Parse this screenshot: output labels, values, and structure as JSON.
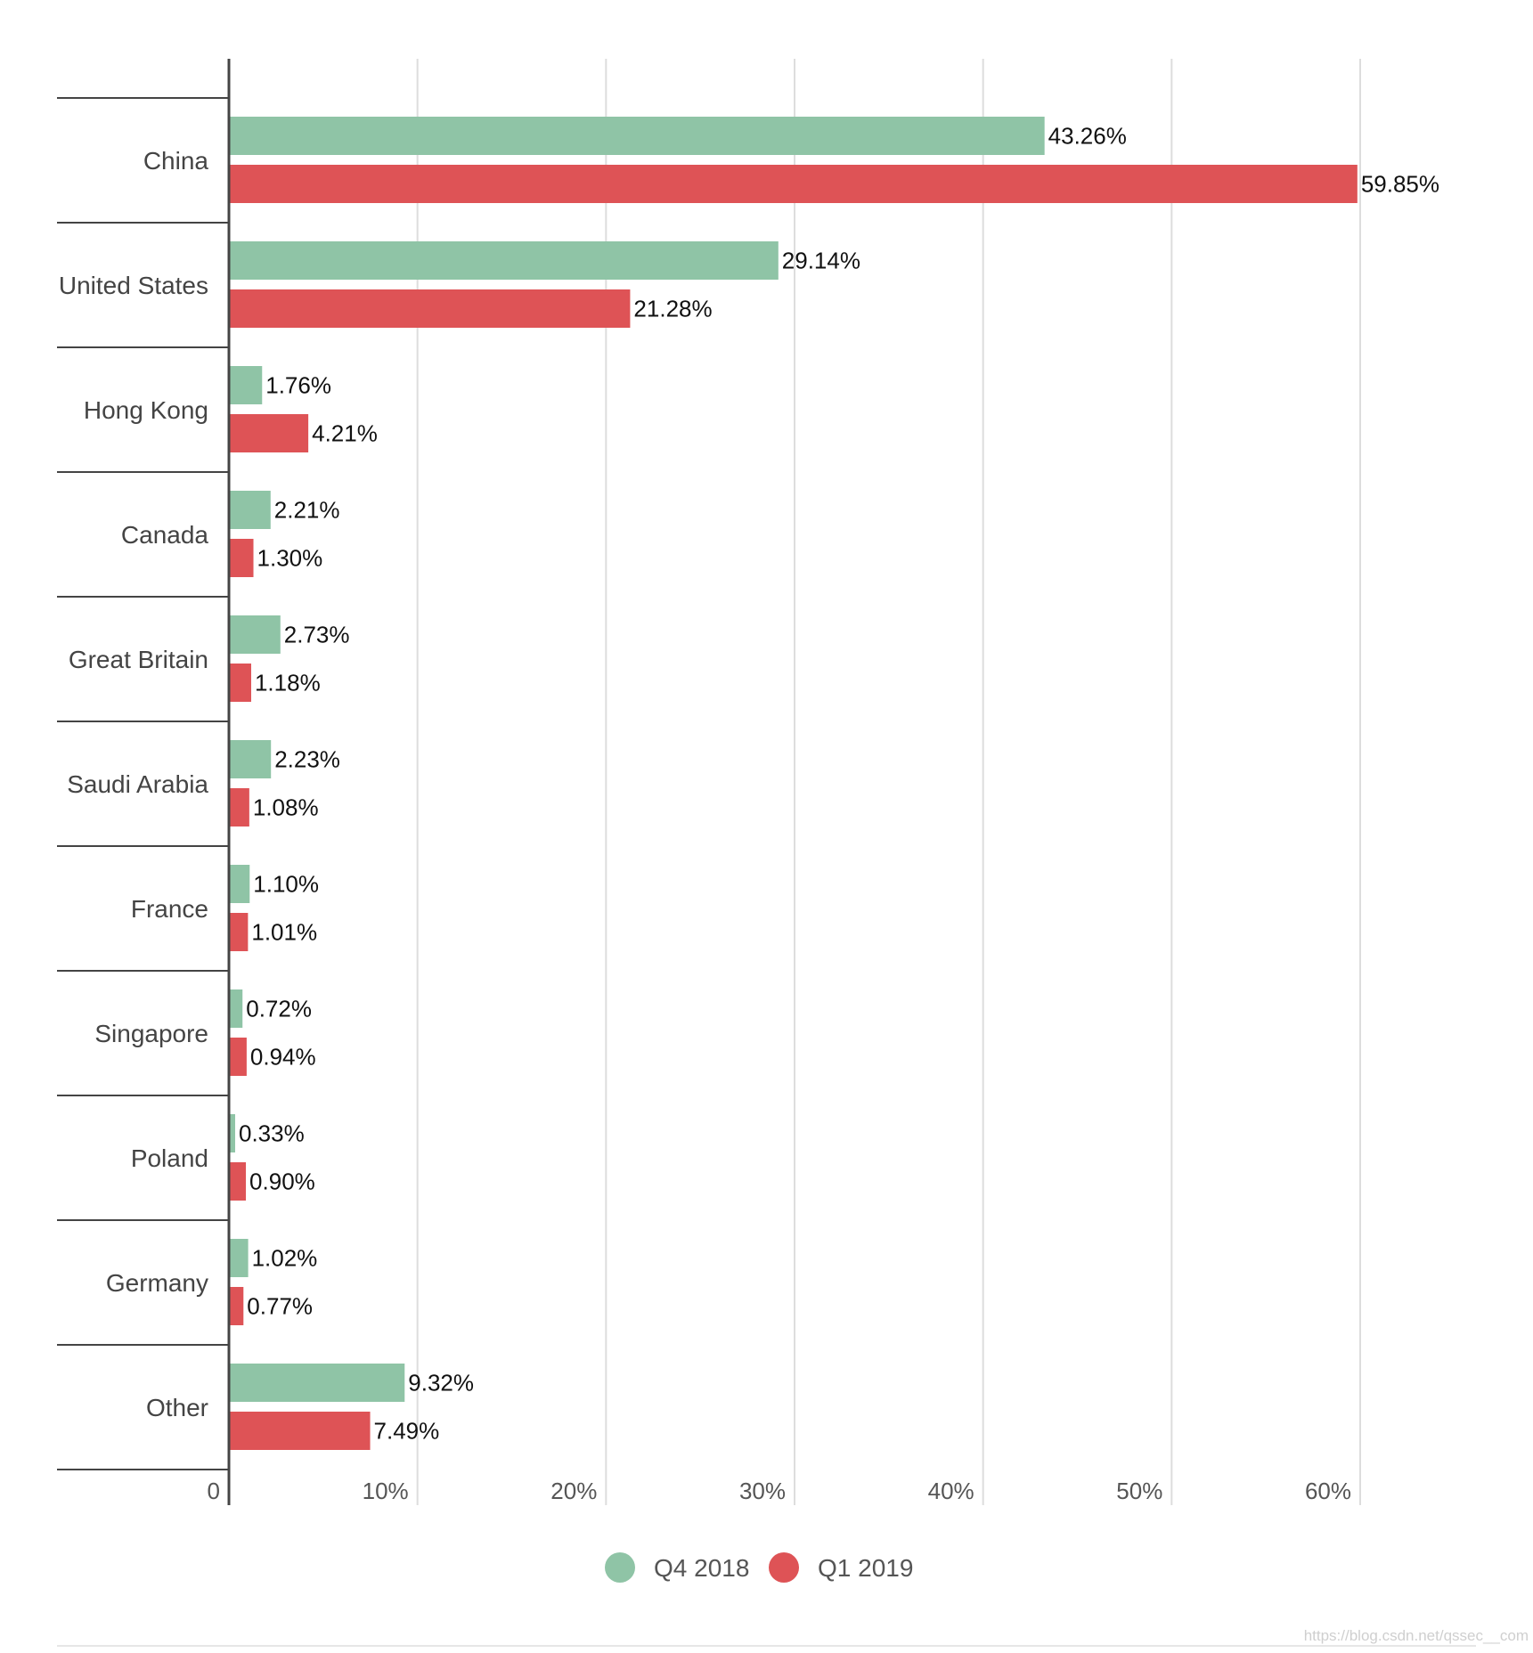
{
  "chart_data": {
    "type": "bar",
    "orientation": "horizontal",
    "categories": [
      "China",
      "United States",
      "Hong Kong",
      "Canada",
      "Great Britain",
      "Saudi Arabia",
      "France",
      "Singapore",
      "Poland",
      "Germany",
      "Other"
    ],
    "series": [
      {
        "name": "Q4 2018",
        "color": "#8fc4a6",
        "values": [
          43.26,
          29.14,
          1.76,
          2.21,
          2.73,
          2.23,
          1.1,
          0.72,
          0.33,
          1.02,
          9.32
        ],
        "labels": [
          "43.26%",
          "29.14%",
          "1.76%",
          "2.21%",
          "2.73%",
          "2.23%",
          "1.10%",
          "0.72%",
          "0.33%",
          "1.02%",
          "9.32%"
        ]
      },
      {
        "name": "Q1 2019",
        "color": "#de5356",
        "values": [
          59.85,
          21.28,
          4.21,
          1.3,
          1.18,
          1.08,
          1.01,
          0.94,
          0.9,
          0.77,
          7.49
        ],
        "labels": [
          "59.85%",
          "21.28%",
          "4.21%",
          "1.30%",
          "1.18%",
          "1.08%",
          "1.01%",
          "0.94%",
          "0.90%",
          "0.77%",
          "7.49%"
        ]
      }
    ],
    "xlim": [
      0,
      60
    ],
    "xticks": [
      0,
      10,
      20,
      30,
      40,
      50,
      60
    ],
    "xtick_labels": [
      "0",
      "10%",
      "20%",
      "30%",
      "40%",
      "50%",
      "60%"
    ],
    "title": "",
    "xlabel": "",
    "ylabel": "",
    "grid": true,
    "legend_position": "bottom-center"
  },
  "watermark": "https://blog.csdn.net/qssec__com"
}
